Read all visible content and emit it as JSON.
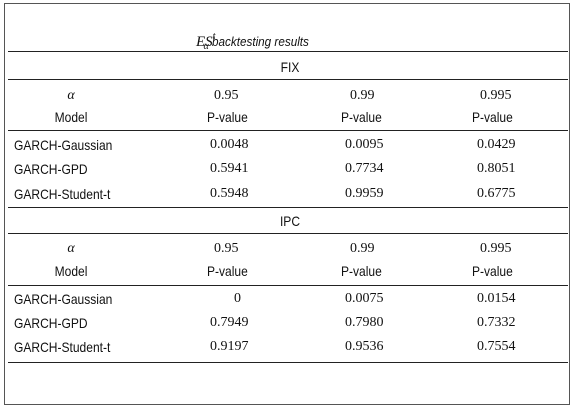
{
  "title": {
    "es": "ES",
    "sup": "t",
    "sub": "α",
    "rest": "backtesting results"
  },
  "header": {
    "alpha": "α",
    "model": "Model"
  },
  "sections": [
    {
      "name": "FIX",
      "alphas": [
        "0.95",
        "0.99",
        "0.995"
      ],
      "pvalue_label": "P-value",
      "rows": [
        {
          "model": "GARCH-Gaussian",
          "values": [
            "0.0048",
            "0.0095",
            "0.0429"
          ]
        },
        {
          "model": "GARCH-GPD",
          "values": [
            "0.5941",
            "0.7734",
            "0.8051"
          ]
        },
        {
          "model": "GARCH-Student-t",
          "values": [
            "0.5948",
            "0.9959",
            "0.6775"
          ]
        }
      ]
    },
    {
      "name": "IPC",
      "alphas": [
        "0.95",
        "0.99",
        "0.995"
      ],
      "pvalue_label": "P-value",
      "rows": [
        {
          "model": "GARCH-Gaussian",
          "values": [
            "0",
            "0.0075",
            "0.0154"
          ]
        },
        {
          "model": "GARCH-GPD",
          "values": [
            "0.7949",
            "0.7980",
            "0.7332"
          ]
        },
        {
          "model": "GARCH-Student-t",
          "values": [
            "0.9197",
            "0.9536",
            "0.7554"
          ]
        }
      ]
    }
  ]
}
